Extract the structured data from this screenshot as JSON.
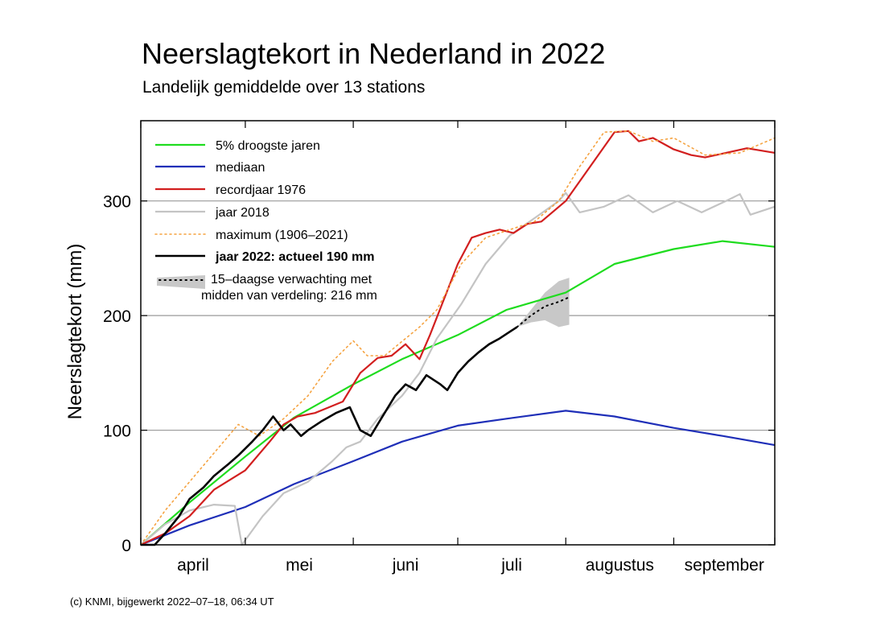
{
  "chart_data": {
    "type": "line",
    "title": "Neerslagtekort in Nederland in 2022",
    "subtitle": "Landelijk gemiddelde over 13 stations",
    "ylabel": "Neerslagtekort (mm)",
    "xlabel": "",
    "ylim": [
      0,
      370
    ],
    "yticks": [
      0,
      100,
      200,
      300
    ],
    "xlim": [
      "2022-04-01",
      "2022-09-30"
    ],
    "months": [
      "april",
      "mei",
      "juni",
      "juli",
      "augustus",
      "september"
    ],
    "grid": "horizontal",
    "legend_position": "top-left",
    "colors": {
      "droogste": "#1fdc1f",
      "mediaan": "#1f2fb8",
      "record": "#d21f1f",
      "y2018": "#c4c4c4",
      "maximum": "#f5a341",
      "y2022": "#000000",
      "forecast_band": "#c8c8c8"
    },
    "legend": [
      {
        "key": "droogste",
        "label": "5% droogste jaren",
        "style": "solid"
      },
      {
        "key": "mediaan",
        "label": "mediaan",
        "style": "solid"
      },
      {
        "key": "record",
        "label": "recordjaar 1976",
        "style": "solid"
      },
      {
        "key": "y2018",
        "label": "jaar 2018",
        "style": "solid"
      },
      {
        "key": "maximum",
        "label": "maximum (1906–2021)",
        "style": "dotted"
      },
      {
        "key": "y2022",
        "label": "jaar 2022: actueel 190 mm",
        "style": "solid",
        "bold": true
      },
      {
        "key": "forecast",
        "label": "15–daagse verwachting met",
        "label2": "midden van verdeling: 216 mm",
        "style": "band"
      }
    ],
    "series": [
      {
        "key": "droogste",
        "name": "5% droogste jaren",
        "x": [
          "2022-04-01",
          "2022-04-15",
          "2022-05-01",
          "2022-05-15",
          "2022-06-01",
          "2022-06-15",
          "2022-07-01",
          "2022-07-15",
          "2022-08-01",
          "2022-08-15",
          "2022-09-01",
          "2022-09-15",
          "2022-09-30"
        ],
        "values": [
          0,
          37,
          77,
          111,
          140,
          162,
          183,
          205,
          220,
          245,
          258,
          265,
          260
        ]
      },
      {
        "key": "mediaan",
        "name": "mediaan",
        "x": [
          "2022-04-01",
          "2022-04-15",
          "2022-05-01",
          "2022-05-15",
          "2022-06-01",
          "2022-06-15",
          "2022-07-01",
          "2022-07-15",
          "2022-08-01",
          "2022-08-15",
          "2022-09-01",
          "2022-09-15",
          "2022-09-30"
        ],
        "values": [
          0,
          17,
          33,
          53,
          73,
          90,
          104,
          110,
          117,
          112,
          102,
          95,
          87
        ]
      },
      {
        "key": "record",
        "name": "recordjaar 1976",
        "x": [
          "2022-04-01",
          "2022-04-08",
          "2022-04-15",
          "2022-04-22",
          "2022-05-01",
          "2022-05-08",
          "2022-05-12",
          "2022-05-16",
          "2022-05-21",
          "2022-05-25",
          "2022-05-29",
          "2022-06-03",
          "2022-06-08",
          "2022-06-12",
          "2022-06-16",
          "2022-06-20",
          "2022-06-23",
          "2022-07-01",
          "2022-07-05",
          "2022-07-09",
          "2022-07-13",
          "2022-07-17",
          "2022-07-21",
          "2022-07-25",
          "2022-08-01",
          "2022-08-08",
          "2022-08-15",
          "2022-08-19",
          "2022-08-22",
          "2022-08-26",
          "2022-09-01",
          "2022-09-06",
          "2022-09-10",
          "2022-09-16",
          "2022-09-22",
          "2022-09-30"
        ],
        "values": [
          0,
          10,
          25,
          48,
          65,
          90,
          105,
          112,
          115,
          120,
          125,
          150,
          163,
          165,
          175,
          162,
          183,
          245,
          268,
          272,
          275,
          272,
          280,
          282,
          300,
          330,
          360,
          361,
          352,
          355,
          345,
          340,
          338,
          342,
          346,
          342
        ]
      },
      {
        "key": "y2018",
        "name": "jaar 2018",
        "x": [
          "2022-04-01",
          "2022-04-08",
          "2022-04-15",
          "2022-04-22",
          "2022-04-28",
          "2022-04-30",
          "2022-05-06",
          "2022-05-12",
          "2022-05-19",
          "2022-05-26",
          "2022-05-30",
          "2022-06-03",
          "2022-06-08",
          "2022-06-15",
          "2022-06-20",
          "2022-06-25",
          "2022-07-02",
          "2022-07-09",
          "2022-07-16",
          "2022-07-23",
          "2022-07-30",
          "2022-08-01",
          "2022-08-05",
          "2022-08-12",
          "2022-08-19",
          "2022-08-26",
          "2022-09-02",
          "2022-09-09",
          "2022-09-16",
          "2022-09-20",
          "2022-09-23",
          "2022-09-30"
        ],
        "values": [
          0,
          18,
          30,
          35,
          34,
          0,
          25,
          45,
          55,
          73,
          85,
          90,
          110,
          130,
          150,
          180,
          210,
          245,
          270,
          285,
          300,
          307,
          290,
          295,
          305,
          290,
          300,
          290,
          300,
          306,
          288,
          295
        ]
      },
      {
        "key": "maximum",
        "name": "maximum (1906–2021)",
        "style": "dotted",
        "x": [
          "2022-04-01",
          "2022-04-08",
          "2022-04-15",
          "2022-04-22",
          "2022-04-29",
          "2022-05-05",
          "2022-05-12",
          "2022-05-19",
          "2022-05-26",
          "2022-06-01",
          "2022-06-05",
          "2022-06-10",
          "2022-06-20",
          "2022-06-25",
          "2022-07-02",
          "2022-07-09",
          "2022-07-16",
          "2022-07-23",
          "2022-07-30",
          "2022-08-05",
          "2022-08-12",
          "2022-08-19",
          "2022-08-26",
          "2022-09-01",
          "2022-09-10",
          "2022-09-20",
          "2022-09-30"
        ],
        "values": [
          0,
          30,
          55,
          80,
          105,
          95,
          110,
          130,
          160,
          178,
          165,
          165,
          190,
          205,
          245,
          268,
          275,
          282,
          300,
          330,
          360,
          361,
          352,
          355,
          340,
          342,
          355
        ]
      },
      {
        "key": "y2022",
        "name": "jaar 2022: actueel 190 mm",
        "x": [
          "2022-04-01",
          "2022-04-05",
          "2022-04-08",
          "2022-04-12",
          "2022-04-15",
          "2022-04-19",
          "2022-04-22",
          "2022-04-26",
          "2022-04-29",
          "2022-05-03",
          "2022-05-06",
          "2022-05-09",
          "2022-05-12",
          "2022-05-14",
          "2022-05-17",
          "2022-05-19",
          "2022-05-23",
          "2022-05-27",
          "2022-05-31",
          "2022-06-03",
          "2022-06-06",
          "2022-06-09",
          "2022-06-13",
          "2022-06-16",
          "2022-06-19",
          "2022-06-22",
          "2022-06-26",
          "2022-06-28",
          "2022-07-01",
          "2022-07-04",
          "2022-07-07",
          "2022-07-10",
          "2022-07-13",
          "2022-07-16",
          "2022-07-18"
        ],
        "values": [
          0,
          0,
          10,
          25,
          40,
          50,
          60,
          70,
          78,
          90,
          100,
          112,
          100,
          105,
          95,
          100,
          108,
          115,
          120,
          100,
          95,
          110,
          130,
          140,
          135,
          148,
          140,
          135,
          150,
          160,
          168,
          175,
          180,
          186,
          190
        ]
      }
    ],
    "forecast": {
      "name": "15–daagse verwachting met midden van verdeling: 216 mm",
      "x": [
        "2022-07-18",
        "2022-07-22",
        "2022-07-26",
        "2022-07-30",
        "2022-08-02"
      ],
      "mid": [
        190,
        200,
        208,
        212,
        216
      ],
      "low": [
        190,
        194,
        196,
        190,
        192
      ],
      "high": [
        190,
        205,
        220,
        230,
        233
      ]
    }
  },
  "footer": {
    "credit": "(c) KNMI, bijgewerkt 2022–07–18, 06:34 UT"
  }
}
